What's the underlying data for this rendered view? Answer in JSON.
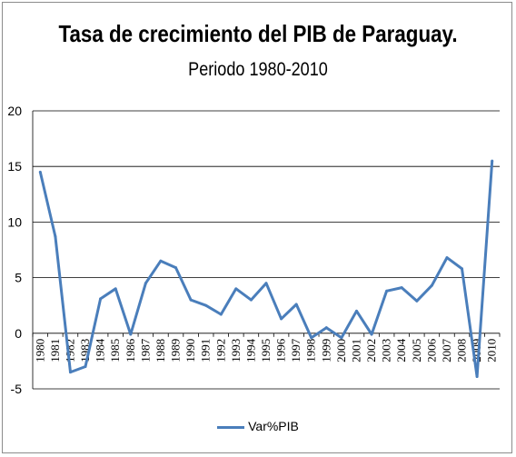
{
  "chart_data": {
    "type": "line",
    "title": "Tasa de crecimiento del PIB de Paraguay.",
    "subtitle": "Periodo 1980-2010",
    "xlabel": "",
    "ylabel": "",
    "ylim": [
      -5,
      20
    ],
    "yticks": [
      "-5",
      "0",
      "5",
      "10",
      "15",
      "20"
    ],
    "grid": true,
    "legend_position": "bottom",
    "categories": [
      "1980",
      "1981",
      "1982",
      "1983",
      "1984",
      "1985",
      "1986",
      "1987",
      "1988",
      "1989",
      "1990",
      "1991",
      "1992",
      "1993",
      "1994",
      "1995",
      "1996",
      "1997",
      "1998",
      "1999",
      "2000",
      "2001",
      "2002",
      "2003",
      "2004",
      "2005",
      "2006",
      "2007",
      "2008",
      "2009",
      "2010"
    ],
    "series": [
      {
        "name": "Var%PIB",
        "color": "#4a7ebb",
        "values": [
          14.5,
          8.7,
          -3.5,
          -3.0,
          3.1,
          4.0,
          -0.1,
          4.5,
          6.5,
          5.9,
          3.0,
          2.5,
          1.7,
          4.0,
          3.0,
          4.5,
          1.3,
          2.6,
          -0.4,
          0.5,
          -0.4,
          2.0,
          -0.1,
          3.8,
          4.1,
          2.9,
          4.3,
          6.8,
          5.8,
          -3.9,
          15.5
        ]
      }
    ]
  }
}
